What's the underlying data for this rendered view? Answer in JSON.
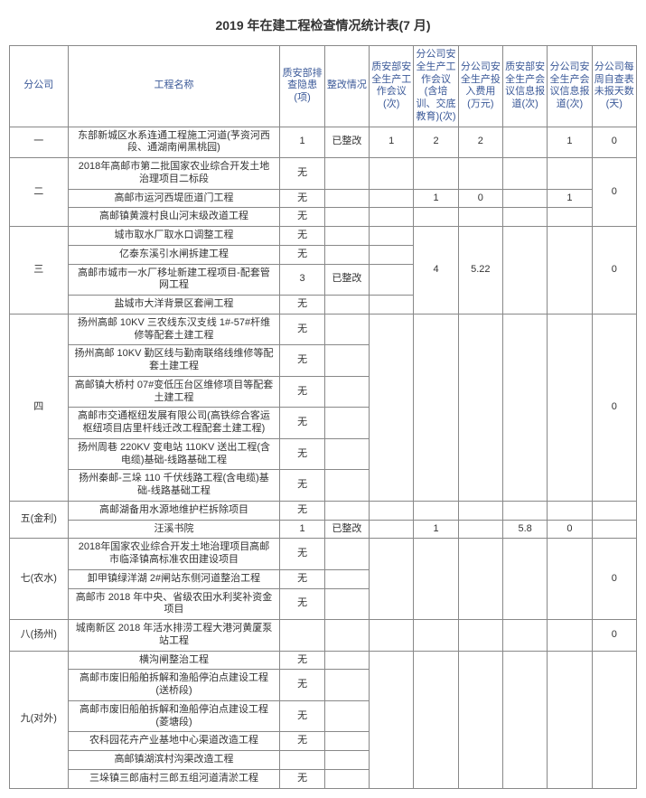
{
  "title": "2019 年在建工程检查情况统计表(7 月)",
  "headers": {
    "c0": "分公司",
    "c1": "工程名称",
    "c2": "质安部排查隐患(项)",
    "c3": "整改情况",
    "c4": "质安部安全生产工作会议(次)",
    "c5": "分公司安全生产工作会议(含培训、交底教育)(次)",
    "c6": "分公司安全生产投入费用(万元)",
    "c7": "质安部安全生产会议信息报道(次)",
    "c8": "分公司安全生产会议信息报道(次)",
    "c9": "分公司每周自查表未报天数(天)"
  },
  "groups": [
    {
      "company": "一",
      "rows": [
        {
          "proj": "东部新城区水系连通工程施工河道(芧资河西段、通湖南闸黑桃园)",
          "c2": "1",
          "c3": "已整改",
          "c4": "1",
          "c5": "2",
          "c6": "2",
          "c7": "",
          "c8": "1",
          "c9": "0"
        }
      ],
      "merge": null
    },
    {
      "company": "二",
      "rows": [
        {
          "proj": "2018年高邮市第二批国家农业综合开发土地治理项目二标段",
          "c2": "无",
          "c3": "",
          "c4": "",
          "c5": "",
          "c6": "",
          "c7": "",
          "c8": "",
          "c9": ""
        },
        {
          "proj": "高邮市运河西堤匝道门工程",
          "c2": "无",
          "c3": "",
          "c4": "",
          "c5": "1",
          "c6": "0",
          "c7": "",
          "c8": "1",
          "c9": ""
        },
        {
          "proj": "高邮镇黄渡村良山河末级改道工程",
          "c2": "无",
          "c3": "",
          "c4": "",
          "c5": "",
          "c6": "",
          "c7": "",
          "c8": "",
          "c9": ""
        }
      ],
      "merge": {
        "c9": "0"
      }
    },
    {
      "company": "三",
      "rows": [
        {
          "proj": "城市取水厂取水口调整工程",
          "c2": "无",
          "c3": "",
          "c4": ""
        },
        {
          "proj": "亿泰东溪引水闸拆建工程",
          "c2": "无",
          "c3": "",
          "c4": ""
        },
        {
          "proj": "高邮市城市一水厂移址新建工程项目-配套管网工程",
          "c2": "3",
          "c3": "已整改",
          "c4": ""
        },
        {
          "proj": "盐城市大洋背景区套闸工程",
          "c2": "无",
          "c3": "",
          "c4": ""
        }
      ],
      "merge": {
        "c5": "4",
        "c6": "5.22",
        "c7": "",
        "c8": "",
        "c9": "0"
      }
    },
    {
      "company": "四",
      "rows": [
        {
          "proj": "扬州高邮 10KV 三农线东汉支线 1#-57#杆维修等配套土建工程",
          "c2": "无",
          "c3": ""
        },
        {
          "proj": "扬州高邮 10KV 勤区线与勤南联络线维修等配套土建工程",
          "c2": "无",
          "c3": ""
        },
        {
          "proj": "高邮镇大桥村 07#变低压台区维修项目等配套土建工程",
          "c2": "无",
          "c3": ""
        },
        {
          "proj": "高邮市交通枢纽发展有限公司(高铁综合客运枢纽项目店里杆线迁改工程配套土建工程)",
          "c2": "无",
          "c3": ""
        },
        {
          "proj": "扬州周巷 220KV 变电站 110KV 送出工程(含电缆)基础-线路基础工程",
          "c2": "无",
          "c3": ""
        },
        {
          "proj": "扬州秦邮-三垛 110 千伏线路工程(含电缆)基础-线路基础工程",
          "c2": "无",
          "c3": ""
        }
      ],
      "merge": {
        "c4": "",
        "c5": "",
        "c6": "",
        "c7": "",
        "c8": "",
        "c9": "0"
      }
    },
    {
      "company": "五(金利)",
      "rows": [
        {
          "proj": "高邮湖备用水源地维护栏拆除项目",
          "c2": "无",
          "c3": "",
          "c4": "",
          "c5": "",
          "c6": "",
          "c7": "",
          "c8": "",
          "c9": ""
        },
        {
          "proj": "汪溪书院",
          "c2": "1",
          "c3": "已整改",
          "c4": "",
          "c5": "1",
          "c6": "",
          "c7": "5.8",
          "c8": "0",
          "c9": ""
        }
      ],
      "merge": null
    },
    {
      "company": "七(农水)",
      "rows": [
        {
          "proj": "2018年国家农业综合开发土地治理项目高邮市临泽镇高标准农田建设项目",
          "c2": "无",
          "c3": ""
        },
        {
          "proj": "卸甲镇绿洋湖 2#闸站东侧河道整治工程",
          "c2": "无",
          "c3": ""
        },
        {
          "proj": "高邮市 2018 年中央、省级农田水利奖补资金项目",
          "c2": "无",
          "c3": ""
        }
      ],
      "merge": {
        "c4": "",
        "c5": "",
        "c6": "",
        "c7": "",
        "c8": "",
        "c9": "0"
      }
    },
    {
      "company": "八(扬州)",
      "rows": [
        {
          "proj": "城南新区 2018 年活水排涝工程大港河黄厦泵站工程",
          "c2": "",
          "c3": "",
          "c4": "",
          "c5": "",
          "c6": "",
          "c7": "",
          "c8": "",
          "c9": "0"
        }
      ],
      "merge": null
    },
    {
      "company": "九(对外)",
      "rows": [
        {
          "proj": "横沟闸整治工程",
          "c2": "无",
          "c3": ""
        },
        {
          "proj": "高邮市废旧船舶拆解和渔船停泊点建设工程(送桥段)",
          "c2": "无",
          "c3": ""
        },
        {
          "proj": "高邮市废旧船舶拆解和渔船停泊点建设工程(菱塘段)",
          "c2": "无",
          "c3": ""
        },
        {
          "proj": "农科园花卉产业基地中心渠道改造工程",
          "c2": "无",
          "c3": ""
        },
        {
          "proj": "高邮镇湖滨村沟渠改造工程",
          "c2": "",
          "c3": ""
        },
        {
          "proj": "三垛镇三郎庙村三郎五组河道清淤工程",
          "c2": "无",
          "c3": ""
        }
      ],
      "merge": {
        "c4": "",
        "c5": "",
        "c6": "",
        "c7": "",
        "c8": "",
        "c9": ""
      }
    }
  ]
}
